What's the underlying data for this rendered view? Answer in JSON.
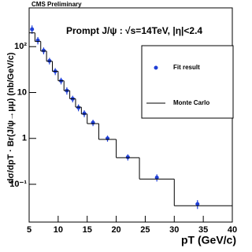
{
  "chart_data": {
    "type": "scatter",
    "header": "CMS Preliminary",
    "title": "Prompt J/ψ : √s=14TeV, |η|<2.4",
    "x_label": "pT (GeV/c)",
    "y_label": "dσ/dpT · Br(J/ψ→μμ) (nb/GeV/c)",
    "log_y": true,
    "legend": "top right",
    "xlim": [
      5,
      40
    ],
    "xticks": [
      5,
      10,
      15,
      20,
      25,
      30,
      35,
      40
    ],
    "ylim": [
      0.015,
      700
    ],
    "yticks": [
      {
        "value": 0.1,
        "label": "10⁻¹"
      },
      1,
      10,
      {
        "value": 100,
        "label": "10²"
      }
    ],
    "series": [
      {
        "name": "Fit result",
        "type": "scatter",
        "color": "#1f3fd6",
        "x": [
          5.5,
          6.5,
          7.5,
          8.5,
          9.5,
          10.5,
          11.5,
          12.5,
          13.5,
          14.5,
          16,
          18.5,
          22,
          27,
          34
        ],
        "values": [
          240,
          137,
          82,
          49,
          29,
          18,
          11,
          7.3,
          4.7,
          3.5,
          2.2,
          1.0,
          0.39,
          0.14,
          0.037
        ],
        "errors": [
          50,
          25,
          14,
          8,
          5,
          3,
          2,
          1.2,
          0.8,
          0.6,
          0.35,
          0.15,
          0.06,
          0.025,
          0.008
        ]
      },
      {
        "name": "Monte Carlo",
        "type": "step",
        "color": "#000000",
        "bins": [
          5,
          6,
          7,
          8,
          9,
          10,
          11,
          12,
          13,
          14,
          15,
          17,
          20,
          24,
          30,
          40
        ],
        "values": [
          200,
          130,
          80,
          48,
          29,
          18,
          11,
          7.3,
          4.8,
          3.4,
          2.1,
          0.95,
          0.38,
          0.13,
          0.034
        ]
      }
    ]
  }
}
